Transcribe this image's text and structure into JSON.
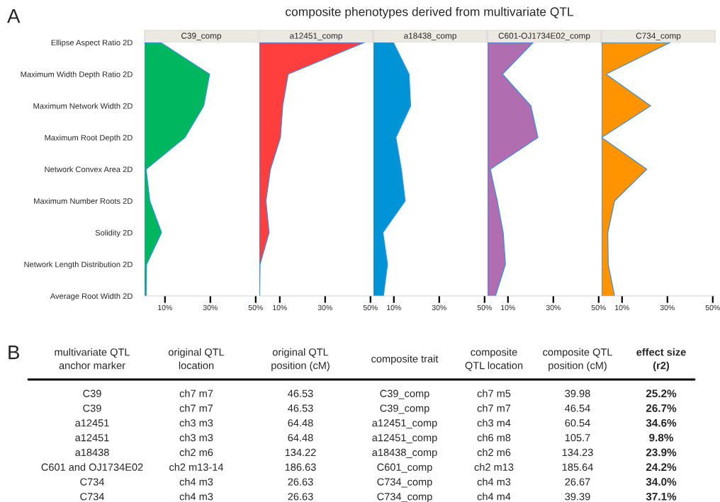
{
  "chart_data": [
    {
      "type": "area",
      "orientation": "horizontal",
      "title": "C39_comp",
      "annotations": [
        "A",
        "composite phenotypes derived from multivariate QTL"
      ],
      "categories": [
        "Ellipse Aspect Ratio 2D",
        "Maximum Width Depth Ratio 2D",
        "Maximum Network Width 2D",
        "Maximum Root Depth 2D",
        "Network Convex Area 2D",
        "Maximum Number Roots 2D",
        "Solidity 2D",
        "Network Length Distribution 2D",
        "Average Root Width 2D"
      ],
      "values": [
        8.1,
        29.7,
        27.1,
        18.8,
        1.7,
        3.3,
        8.5,
        1.9,
        1.7
      ],
      "color": "#00b760",
      "xlim": [
        1,
        51
      ],
      "xticks": [
        {
          "value": 10,
          "label": "10%"
        },
        {
          "value": 30,
          "label": "30%"
        },
        {
          "value": 50,
          "label": "50%"
        }
      ],
      "grid": false
    },
    {
      "type": "area",
      "orientation": "horizontal",
      "title": "a12451_comp",
      "tick_labels": "x",
      "values": [
        47.4,
        13.7,
        11.3,
        10.3,
        5.9,
        3.9,
        5.3,
        1.3,
        1.1
      ],
      "color": "#ff3e3e",
      "xlim": [
        1,
        51
      ],
      "xticks": [
        {
          "value": 10,
          "label": "10%"
        },
        {
          "value": 30,
          "label": "30%"
        },
        {
          "value": 50,
          "label": "50%"
        }
      ],
      "grid": false
    },
    {
      "type": "area",
      "orientation": "horizontal",
      "title": "a18438_comp",
      "tick_labels": "x",
      "values": [
        9.8,
        16.7,
        17.4,
        10.9,
        13.3,
        15.0,
        5.2,
        7.2,
        5.4
      ],
      "color": "#0094d6",
      "xlim": [
        1,
        51
      ],
      "xticks": [
        {
          "value": 10,
          "label": "10%"
        },
        {
          "value": 30,
          "label": "30%"
        },
        {
          "value": 50,
          "label": "50%"
        }
      ],
      "grid": false
    },
    {
      "type": "area",
      "orientation": "horizontal",
      "title": "C601-OJ1734E02_comp",
      "tick_labels": "x",
      "values": [
        21.1,
        7.6,
        20.1,
        23.2,
        2.2,
        5.3,
        7.9,
        8.9,
        4.5
      ],
      "color": "#b06db0",
      "xlim": [
        1,
        51
      ],
      "xticks": [
        {
          "value": 10,
          "label": "10%"
        },
        {
          "value": 30,
          "label": "30%"
        },
        {
          "value": 50,
          "label": "50%"
        }
      ],
      "grid": false
    },
    {
      "type": "area",
      "orientation": "horizontal",
      "title": "C734_comp",
      "tick_labels": "x",
      "values": [
        31.3,
        2.9,
        22.6,
        1.0,
        20.9,
        6.7,
        3.7,
        3.9,
        6.7
      ],
      "color": "#ff9400",
      "xlim": [
        1,
        51
      ],
      "xticks": [
        {
          "value": 10,
          "label": "10%"
        },
        {
          "value": 30,
          "label": "30%"
        },
        {
          "value": 50,
          "label": "50%"
        }
      ],
      "grid": false
    },
    {
      "type": "other",
      "categories": [
        "multivariate QTL\nanchor marker",
        "original QTL\nlocation",
        "original QTL\nposition (cM)",
        "composite trait",
        "composite\nQTL location",
        "composite QTL\nposition (cM)",
        "effect size\n(r2)"
      ],
      "annotations": [
        "B",
        "C39",
        "ch7 m7",
        "46.53",
        "C39_comp",
        "ch7 m5",
        "39.98",
        "25.2%",
        "C39",
        "ch7 m7",
        "46.53",
        "C39_comp",
        "ch7 m7",
        "46.54",
        "26.7%",
        "a12451",
        "ch3 m3",
        "64.48",
        "a12451_comp",
        "ch3 m4",
        "60.54",
        "34.6%",
        "a12451",
        "ch3 m3",
        "64.48",
        "a12451_comp",
        "ch6 m8",
        "105.7",
        "9.8%",
        "a18438",
        "ch2 m6",
        "134.22",
        "a18438_comp",
        "ch2 m6",
        "134.23",
        "23.9%",
        "C601 and OJ1734E02",
        "ch2 m13-14",
        "186.63",
        "C601_comp",
        "ch2 m13",
        "185.64",
        "24.2%",
        "C734",
        "ch4 m3",
        "26.63",
        "C734_comp",
        "ch4 m3",
        "26.67",
        "34.0%",
        "C734",
        "ch4 m3",
        "26.63",
        "C734_comp",
        "ch4 m4",
        "39.39",
        "37.1%"
      ]
    }
  ]
}
